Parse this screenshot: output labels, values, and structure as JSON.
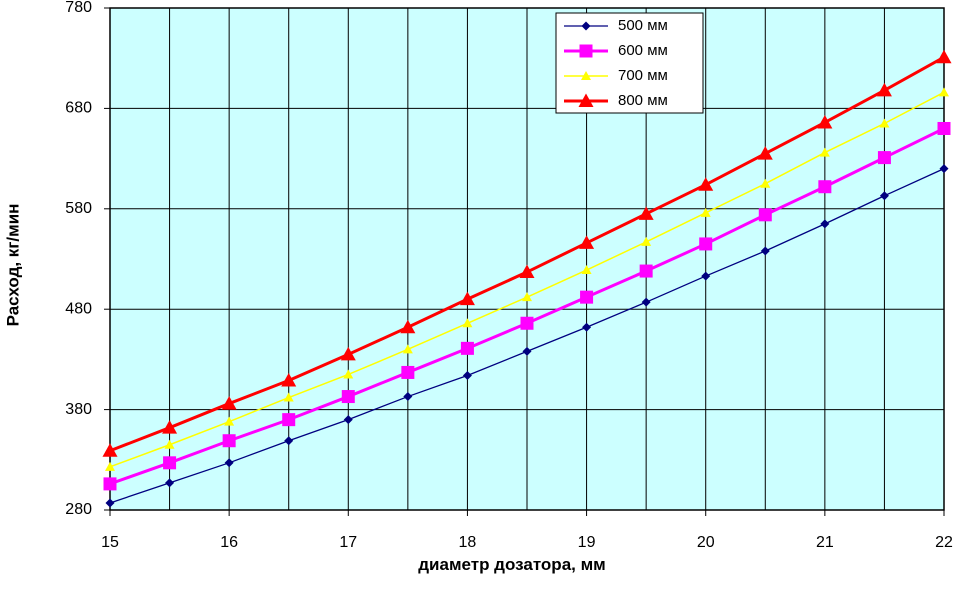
{
  "chart_data": {
    "type": "line",
    "x_label": "диаметр дозатора, мм",
    "y_label": "Расход, кг/мин",
    "x": [
      15,
      15.5,
      16,
      16.5,
      17,
      17.5,
      18,
      18.5,
      19,
      19.5,
      20,
      20.5,
      21,
      21.5,
      22
    ],
    "series": [
      {
        "name": "500 мм",
        "color": "#000080",
        "marker": "diamond",
        "width": 1.3,
        "values": [
          287,
          307,
          327,
          349,
          370,
          393,
          414,
          438,
          462,
          487,
          513,
          538,
          565,
          593,
          620
        ]
      },
      {
        "name": "600 мм",
        "color": "#ff00ff",
        "marker": "square",
        "width": 3,
        "values": [
          306,
          327,
          349,
          370,
          393,
          417,
          441,
          466,
          492,
          518,
          545,
          574,
          602,
          631,
          660
        ]
      },
      {
        "name": "700 мм",
        "color": "#ffff00",
        "marker": "triangle-small",
        "width": 1.5,
        "values": [
          323,
          345,
          368,
          392,
          415,
          440,
          466,
          492,
          519,
          547,
          576,
          605,
          636,
          665,
          696
        ]
      },
      {
        "name": "800 мм",
        "color": "#ff0000",
        "marker": "triangle",
        "width": 3,
        "values": [
          339,
          362,
          386,
          409,
          435,
          462,
          490,
          517,
          546,
          575,
          604,
          635,
          666,
          698,
          731
        ]
      }
    ],
    "xlim": [
      15,
      22
    ],
    "xticks": [
      15,
      16,
      17,
      18,
      19,
      20,
      21,
      22
    ],
    "ylim": [
      280,
      780
    ],
    "yticks": [
      280,
      380,
      480,
      580,
      680,
      780
    ],
    "grid": true,
    "plot_background": "#ccffff",
    "legend": "top-right"
  }
}
